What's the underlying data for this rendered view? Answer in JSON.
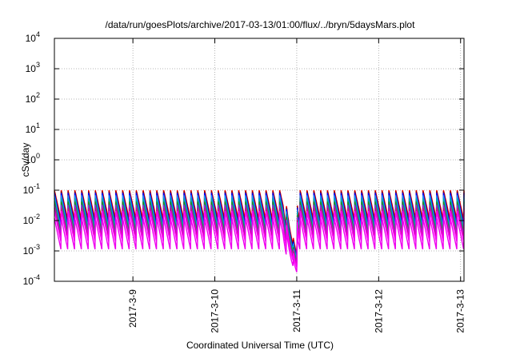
{
  "chart_data": {
    "type": "line",
    "title": "/data/run/goesPlots/archive/2017-03-13/01:00/flux/../bryn/5daysMars.plot",
    "xlabel": "Coordinated Universal Time (UTC)",
    "ylabel": "cSv/day",
    "yscale": "log",
    "ylim": [
      0.0001,
      10000
    ],
    "xlim": [
      "2017-03-08 01:00",
      "2017-03-13 01:00"
    ],
    "grid": true,
    "legend": "none",
    "y_tick_labels": [
      {
        "base": "10",
        "exp": "-4",
        "value": 0.0001
      },
      {
        "base": "10",
        "exp": "-3",
        "value": 0.001
      },
      {
        "base": "10",
        "exp": "-2",
        "value": 0.01
      },
      {
        "base": "10",
        "exp": "-1",
        "value": 0.1
      },
      {
        "base": "10",
        "exp": "0",
        "value": 1
      },
      {
        "base": "10",
        "exp": "1",
        "value": 10
      },
      {
        "base": "10",
        "exp": "2",
        "value": 100
      },
      {
        "base": "10",
        "exp": "3",
        "value": 1000
      },
      {
        "base": "10",
        "exp": "4",
        "value": 10000
      }
    ],
    "x_tick_labels": [
      {
        "label": "2017-3-9",
        "value": "2017-03-09"
      },
      {
        "label": "2017-3-10",
        "value": "2017-03-10"
      },
      {
        "label": "2017-3-11",
        "value": "2017-03-11"
      },
      {
        "label": "2017-3-12",
        "value": "2017-03-12"
      },
      {
        "label": "2017-3-13",
        "value": "2017-03-13"
      }
    ],
    "series_shape": {
      "orbit_period_hours": 2.0,
      "approx_peak_values": [
        0.1,
        0.09,
        0.07,
        0.05,
        0.035,
        0.025,
        0.018,
        0.012
      ],
      "approx_trough_values": [
        0.01,
        0.007,
        0.005,
        0.004,
        0.003,
        0.0022,
        0.0016,
        0.001
      ],
      "gap_dip_time": "2017-03-11 00:00",
      "gap_dip_min_value": 0.0002
    },
    "series": [
      {
        "color": "#ff0000",
        "level": 1.0
      },
      {
        "color": "#8b0000",
        "level": 0.9
      },
      {
        "color": "#0000ff",
        "level": 0.8
      },
      {
        "color": "#1e90ff",
        "level": 0.7
      },
      {
        "color": "#00aaaa",
        "level": 0.6
      },
      {
        "color": "#228b22",
        "level": 0.5
      },
      {
        "color": "#8a2be2",
        "level": 0.4
      },
      {
        "color": "#c71585",
        "level": 0.3
      },
      {
        "color": "#ff00ff",
        "level": 0.2
      },
      {
        "color": "#ee00ee",
        "level": 0.0
      }
    ]
  }
}
